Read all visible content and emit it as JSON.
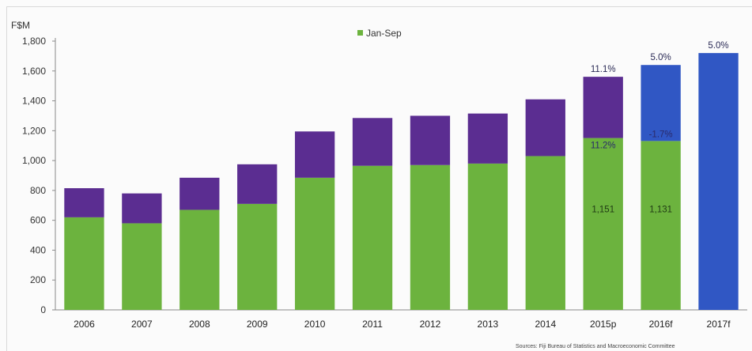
{
  "chart_data": {
    "type": "bar",
    "stacked": true,
    "y_unit_label": "F$M",
    "ylim": [
      0,
      1800
    ],
    "yticks": [
      0,
      200,
      400,
      600,
      800,
      1000,
      1200,
      1400,
      1600,
      1800
    ],
    "ytick_labels": [
      "0",
      "200",
      "400",
      "600",
      "800",
      "1,000",
      "1,200",
      "1,400",
      "1,600",
      "1,800"
    ],
    "categories": [
      "2006",
      "2007",
      "2008",
      "2009",
      "2010",
      "2011",
      "2012",
      "2013",
      "2014",
      "2015p",
      "2016f",
      "2017f"
    ],
    "series": [
      {
        "name": "Jan-Sep",
        "color": "#6cb33e",
        "values": [
          620,
          580,
          670,
          710,
          885,
          965,
          970,
          980,
          1030,
          1151,
          1131,
          null
        ]
      },
      {
        "color": "#5b2d91",
        "values": [
          195,
          200,
          215,
          265,
          310,
          320,
          330,
          335,
          380,
          410,
          null,
          null
        ]
      }
    ],
    "forecast_totals": [
      null,
      null,
      null,
      null,
      null,
      null,
      null,
      null,
      null,
      null,
      1640,
      1720
    ],
    "forecast_color": "#3057c4",
    "legend": {
      "position": "top-center",
      "entries": [
        "Jan-Sep"
      ]
    },
    "annotations": {
      "top_percent": [
        "11.1%",
        "5.0%",
        "5.0%"
      ],
      "mid_percent": [
        "11.2%",
        "-1.7%"
      ],
      "value_labels": [
        "1,151",
        "1,131"
      ]
    },
    "grid": false
  },
  "source_note": "Sources: Fiji Bureau of Statistics and Macroeconomic Committee"
}
